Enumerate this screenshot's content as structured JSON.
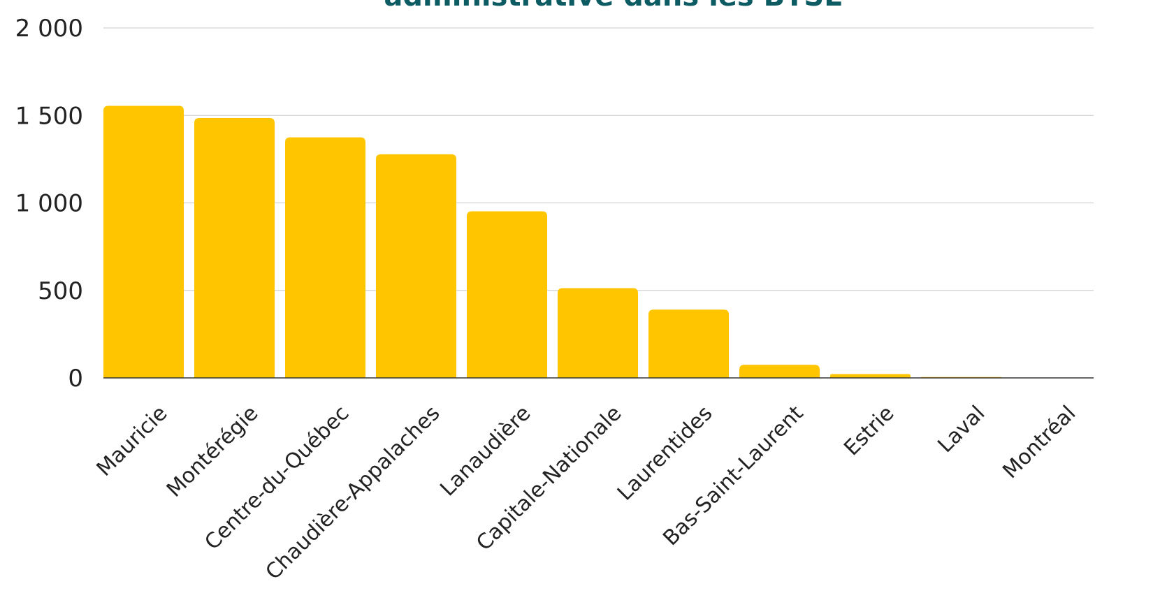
{
  "colors": {
    "bar": "#FFC600",
    "title": "#0D5C63",
    "grid": "#C8C8C8",
    "axis": "#333333",
    "text": "#222222"
  },
  "chart_data": {
    "type": "bar",
    "title": "administrative dans les BTSE",
    "xlabel": "",
    "ylabel": "",
    "categories": [
      "Mauricie",
      "Montérégie",
      "Centre-du-Québec",
      "Chaudière-Appalaches",
      "Lanaudière",
      "Capitale-Nationale",
      "Laurentides",
      "Bas-Saint-Laurent",
      "Estrie",
      "Laval",
      "Montréal"
    ],
    "values": [
      1555,
      1485,
      1375,
      1278,
      952,
      513,
      390,
      75,
      22,
      5,
      0
    ],
    "ylim": [
      0,
      2000
    ],
    "yticks": [
      0,
      500,
      1000,
      1500,
      2000
    ],
    "ytick_labels": [
      "0",
      "500",
      "1 000",
      "1 500",
      "2 000"
    ],
    "grid": true,
    "legend": "none"
  }
}
